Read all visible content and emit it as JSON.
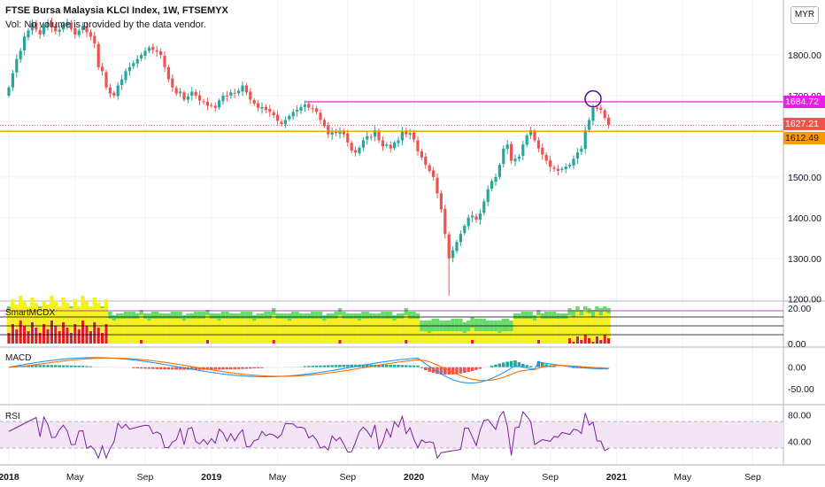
{
  "header": {
    "title": "FTSE Bursa Malaysia KLCI Index, 1W, FTSEMYX",
    "vol_note": "Vol: No volume is provided by the data vendor."
  },
  "currency_label": "MYR",
  "price_tags": {
    "resistance": "1684.72",
    "last": "1627.21",
    "support": "1612.49"
  },
  "colors": {
    "up": "#26a69a",
    "down": "#ef5350",
    "resistance": "#e91ee9",
    "support": "#ff9800",
    "last": "#ef5350",
    "rsi": "#7b1fa2",
    "macd": "#2196f3",
    "signal": "#ff6d00"
  },
  "indicators": {
    "smart": "SmartMCDX",
    "macd": "MACD",
    "rsi": "RSI"
  },
  "chart_data": {
    "type": "candlestick",
    "main": {
      "y_ticks": [
        "1800.00",
        "1700.00",
        "1600.00",
        "1500.00",
        "1400.00",
        "1300.00",
        "1200.00"
      ],
      "ylim": [
        1195,
        1935
      ],
      "resistance_level": 1684.72,
      "support_level": 1612.49,
      "last_price": 1627.21,
      "closes": [
        1720,
        1755,
        1790,
        1810,
        1845,
        1860,
        1878,
        1862,
        1850,
        1871,
        1880,
        1868,
        1858,
        1862,
        1875,
        1880,
        1864,
        1850,
        1860,
        1872,
        1856,
        1845,
        1828,
        1770,
        1760,
        1720,
        1705,
        1700,
        1725,
        1740,
        1760,
        1770,
        1780,
        1790,
        1800,
        1810,
        1818,
        1812,
        1808,
        1800,
        1770,
        1740,
        1720,
        1705,
        1710,
        1690,
        1698,
        1710,
        1700,
        1688,
        1685,
        1675,
        1676,
        1670,
        1688,
        1700,
        1698,
        1708,
        1705,
        1712,
        1725,
        1708,
        1690,
        1680,
        1670,
        1672,
        1665,
        1660,
        1652,
        1638,
        1630,
        1640,
        1650,
        1660,
        1665,
        1672,
        1678,
        1670,
        1668,
        1660,
        1640,
        1625,
        1605,
        1610,
        1608,
        1612,
        1605,
        1585,
        1565,
        1560,
        1572,
        1590,
        1600,
        1598,
        1615,
        1590,
        1575,
        1580,
        1570,
        1585,
        1590,
        1612,
        1605,
        1608,
        1592,
        1563,
        1548,
        1530,
        1515,
        1500,
        1460,
        1420,
        1360,
        1300,
        1320,
        1340,
        1360,
        1380,
        1400,
        1405,
        1395,
        1410,
        1440,
        1470,
        1490,
        1500,
        1530,
        1570,
        1580,
        1540,
        1545,
        1550,
        1580,
        1602,
        1615,
        1590,
        1570,
        1555,
        1540,
        1525,
        1520,
        1515,
        1520,
        1525,
        1530,
        1545,
        1560,
        1570,
        1615,
        1640,
        1670,
        1668,
        1665,
        1645,
        1627.21
      ],
      "x_ticks": [
        "2018",
        "May",
        "Sep",
        "2019",
        "May",
        "Sep",
        "2020",
        "May",
        "Sep",
        "2021",
        "May",
        "Sep"
      ],
      "x_tick_weeks": [
        0,
        17,
        35,
        52,
        69,
        87,
        104,
        121,
        139,
        156,
        173,
        191
      ]
    },
    "smart": {
      "y_ticks": [
        "20.00",
        "0.00"
      ],
      "ylim": [
        0,
        22
      ]
    },
    "macd": {
      "y_ticks": [
        "0.00",
        "-50.00"
      ],
      "ylim": [
        -78,
        38
      ]
    },
    "rsi": {
      "y_ticks": [
        "80.00",
        "40.00"
      ],
      "ylim": [
        10,
        90
      ],
      "bands": [
        70,
        30
      ]
    }
  }
}
